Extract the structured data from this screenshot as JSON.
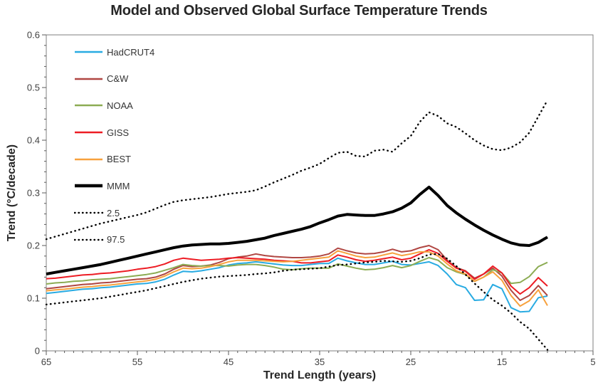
{
  "chart_data": {
    "type": "line",
    "title": "Model and Observed Global Surface Temperature Trends",
    "xlabel": "Trend Length (years)",
    "ylabel": "Trend (°C/decade)",
    "grid": false,
    "legend_position": "top-left-inside",
    "x_axis": {
      "min": 5,
      "max": 65,
      "reversed": true,
      "major_ticks": [
        65,
        55,
        45,
        35,
        25,
        15,
        5
      ],
      "minor_step": 1
    },
    "y_axis": {
      "min": 0,
      "max": 0.6,
      "major_step": 0.1,
      "minor_step": 0.02,
      "tick_labels": [
        "0",
        "0.1",
        "0.2",
        "0.3",
        "0.4",
        "0.5",
        "0.6"
      ]
    },
    "x": [
      65,
      64,
      63,
      62,
      61,
      60,
      59,
      58,
      57,
      56,
      55,
      54,
      53,
      52,
      51,
      50,
      49,
      48,
      47,
      46,
      45,
      44,
      43,
      42,
      41,
      40,
      39,
      38,
      37,
      36,
      35,
      34,
      33,
      32,
      31,
      30,
      29,
      28,
      27,
      26,
      25,
      24,
      23,
      22,
      21,
      20,
      19,
      18,
      17,
      16,
      15,
      14,
      13,
      12,
      11,
      10
    ],
    "series": [
      {
        "name": "HadCRUT4",
        "color": "#29ABE2",
        "width": 2,
        "style": "solid",
        "values": [
          0.109,
          0.111,
          0.113,
          0.115,
          0.117,
          0.118,
          0.12,
          0.121,
          0.123,
          0.125,
          0.127,
          0.128,
          0.131,
          0.136,
          0.144,
          0.151,
          0.15,
          0.152,
          0.155,
          0.158,
          0.163,
          0.166,
          0.167,
          0.169,
          0.167,
          0.165,
          0.163,
          0.162,
          0.162,
          0.164,
          0.166,
          0.166,
          0.176,
          0.171,
          0.167,
          0.164,
          0.164,
          0.167,
          0.17,
          0.164,
          0.163,
          0.166,
          0.169,
          0.162,
          0.146,
          0.126,
          0.12,
          0.096,
          0.097,
          0.126,
          0.118,
          0.082,
          0.074,
          0.075,
          0.101,
          0.104
        ]
      },
      {
        "name": "C&W",
        "color": "#B04642",
        "width": 2,
        "style": "solid",
        "values": [
          0.118,
          0.12,
          0.122,
          0.124,
          0.126,
          0.127,
          0.129,
          0.13,
          0.132,
          0.134,
          0.136,
          0.137,
          0.14,
          0.146,
          0.155,
          0.162,
          0.16,
          0.161,
          0.163,
          0.168,
          0.175,
          0.178,
          0.18,
          0.184,
          0.181,
          0.179,
          0.178,
          0.177,
          0.177,
          0.178,
          0.18,
          0.184,
          0.195,
          0.19,
          0.186,
          0.184,
          0.185,
          0.188,
          0.193,
          0.188,
          0.19,
          0.196,
          0.2,
          0.192,
          0.172,
          0.158,
          0.152,
          0.138,
          0.146,
          0.157,
          0.142,
          0.115,
          0.096,
          0.105,
          0.124,
          0.105
        ]
      },
      {
        "name": "NOAA",
        "color": "#8CAC53",
        "width": 2,
        "style": "solid",
        "values": [
          0.127,
          0.129,
          0.13,
          0.132,
          0.133,
          0.135,
          0.136,
          0.137,
          0.139,
          0.141,
          0.143,
          0.145,
          0.148,
          0.153,
          0.158,
          0.164,
          0.162,
          0.161,
          0.162,
          0.162,
          0.161,
          0.163,
          0.164,
          0.164,
          0.162,
          0.159,
          0.155,
          0.154,
          0.156,
          0.157,
          0.157,
          0.157,
          0.165,
          0.161,
          0.157,
          0.154,
          0.155,
          0.158,
          0.162,
          0.158,
          0.162,
          0.17,
          0.177,
          0.172,
          0.158,
          0.15,
          0.145,
          0.132,
          0.14,
          0.154,
          0.148,
          0.128,
          0.13,
          0.141,
          0.16,
          0.168
        ]
      },
      {
        "name": "GISS",
        "color": "#ED1C24",
        "width": 2,
        "style": "solid",
        "values": [
          0.137,
          0.138,
          0.14,
          0.142,
          0.144,
          0.145,
          0.147,
          0.148,
          0.15,
          0.152,
          0.155,
          0.157,
          0.16,
          0.165,
          0.172,
          0.176,
          0.174,
          0.172,
          0.173,
          0.174,
          0.176,
          0.177,
          0.176,
          0.175,
          0.174,
          0.172,
          0.171,
          0.17,
          0.167,
          0.167,
          0.169,
          0.171,
          0.182,
          0.178,
          0.173,
          0.17,
          0.172,
          0.175,
          0.178,
          0.173,
          0.176,
          0.184,
          0.192,
          0.185,
          0.17,
          0.157,
          0.151,
          0.136,
          0.146,
          0.161,
          0.148,
          0.123,
          0.108,
          0.12,
          0.139,
          0.123
        ]
      },
      {
        "name": "BEST",
        "color": "#F7A13D",
        "width": 2,
        "style": "solid",
        "values": [
          0.114,
          0.116,
          0.117,
          0.119,
          0.121,
          0.122,
          0.124,
          0.125,
          0.127,
          0.129,
          0.131,
          0.133,
          0.136,
          0.142,
          0.15,
          0.157,
          0.156,
          0.157,
          0.16,
          0.164,
          0.169,
          0.172,
          0.172,
          0.172,
          0.171,
          0.17,
          0.169,
          0.17,
          0.172,
          0.174,
          0.176,
          0.178,
          0.19,
          0.185,
          0.18,
          0.177,
          0.178,
          0.182,
          0.186,
          0.181,
          0.184,
          0.188,
          0.188,
          0.18,
          0.165,
          0.152,
          0.146,
          0.132,
          0.14,
          0.15,
          0.134,
          0.105,
          0.085,
          0.095,
          0.116,
          0.086
        ]
      },
      {
        "name": "MMM",
        "color": "#000000",
        "width": 4,
        "style": "solid",
        "values": [
          0.146,
          0.149,
          0.152,
          0.155,
          0.158,
          0.161,
          0.164,
          0.168,
          0.172,
          0.176,
          0.18,
          0.184,
          0.188,
          0.192,
          0.196,
          0.199,
          0.201,
          0.202,
          0.203,
          0.203,
          0.204,
          0.206,
          0.208,
          0.211,
          0.214,
          0.219,
          0.223,
          0.227,
          0.231,
          0.236,
          0.243,
          0.249,
          0.256,
          0.259,
          0.258,
          0.257,
          0.257,
          0.26,
          0.264,
          0.271,
          0.281,
          0.297,
          0.311,
          0.295,
          0.276,
          0.262,
          0.25,
          0.239,
          0.229,
          0.22,
          0.212,
          0.205,
          0.201,
          0.2,
          0.206,
          0.216
        ]
      },
      {
        "name": "2.5",
        "color": "#000000",
        "width": 2.4,
        "style": "dotted",
        "values": [
          0.088,
          0.09,
          0.092,
          0.094,
          0.096,
          0.098,
          0.1,
          0.103,
          0.106,
          0.109,
          0.112,
          0.115,
          0.119,
          0.123,
          0.127,
          0.131,
          0.134,
          0.137,
          0.139,
          0.141,
          0.142,
          0.143,
          0.144,
          0.146,
          0.147,
          0.149,
          0.152,
          0.154,
          0.155,
          0.156,
          0.157,
          0.16,
          0.163,
          0.164,
          0.166,
          0.168,
          0.169,
          0.171,
          0.17,
          0.169,
          0.171,
          0.176,
          0.183,
          0.184,
          0.175,
          0.161,
          0.145,
          0.128,
          0.112,
          0.097,
          0.086,
          0.072,
          0.055,
          0.042,
          0.022,
          0.002
        ]
      },
      {
        "name": "97.5",
        "color": "#000000",
        "width": 2.4,
        "style": "dotted",
        "values": [
          0.212,
          0.217,
          0.222,
          0.227,
          0.232,
          0.237,
          0.242,
          0.246,
          0.25,
          0.254,
          0.258,
          0.263,
          0.27,
          0.277,
          0.283,
          0.286,
          0.288,
          0.29,
          0.292,
          0.295,
          0.298,
          0.3,
          0.302,
          0.305,
          0.312,
          0.32,
          0.327,
          0.334,
          0.342,
          0.348,
          0.355,
          0.366,
          0.376,
          0.378,
          0.37,
          0.369,
          0.38,
          0.382,
          0.378,
          0.394,
          0.408,
          0.435,
          0.453,
          0.446,
          0.432,
          0.425,
          0.413,
          0.4,
          0.39,
          0.383,
          0.381,
          0.386,
          0.396,
          0.414,
          0.445,
          0.476
        ]
      }
    ]
  }
}
